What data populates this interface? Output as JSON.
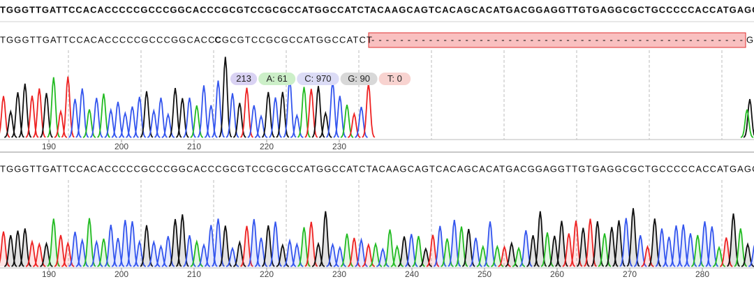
{
  "reference_sequence": "TGGGTTGATTCCACACCCCCGCCCGGCACCCGCGTCCGCGCCATGGCCATCTACAAGCAGTCACAGCACATGACGGAGGTTGTGAGGCGCTGCCCCCACCATGAGC",
  "sample_a": {
    "sequence_before": "TGGGTTGATTCCACACCCCCGCCCGGCACC",
    "highlighted_base": "C",
    "sequence_after": "GCGTCCGCGCCATGGCCATCT",
    "gap": "----------------------------------------------------",
    "sequence_tail": "G",
    "tooltip": [
      "213",
      "A: 61",
      "C: 970",
      "G: 90",
      "T: 0"
    ],
    "axis_ticks": [
      190,
      200,
      210,
      220,
      230
    ]
  },
  "sample_b": {
    "sequence": "TGGGTTGATTCCACACCCCCGCCCGGCACCCGCGTCCGCGCCATGGCCATCTACAAGCAGTCACAGCACATGACGGAGGTTGTGAGGCGCTGCCCCCACCATGAGC",
    "axis_ticks": [
      190,
      200,
      210,
      220,
      230,
      240,
      250,
      260,
      270,
      280
    ]
  }
}
